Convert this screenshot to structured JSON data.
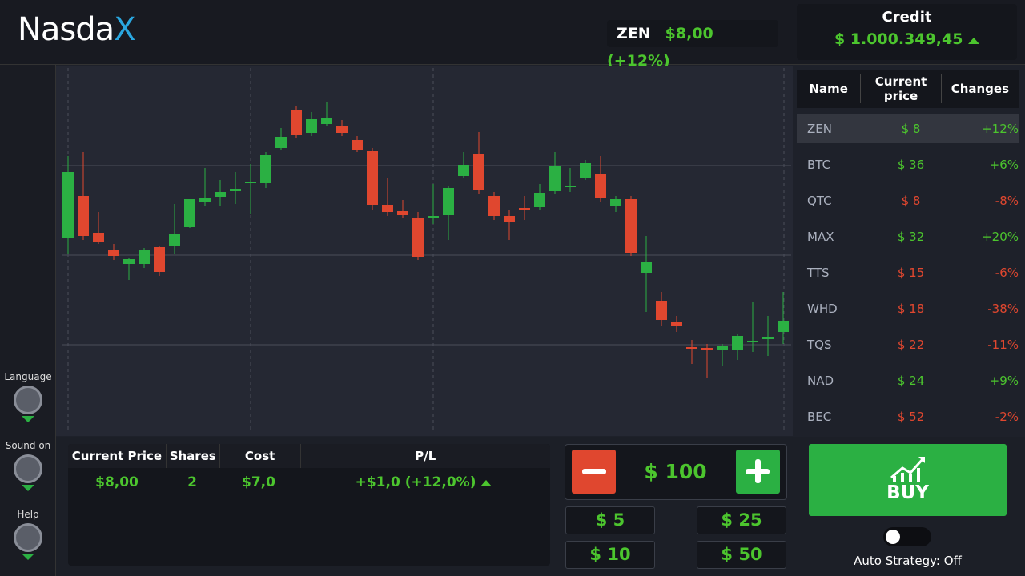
{
  "header": {
    "logo": {
      "text": "Nasda",
      "accent": "X"
    },
    "ticker": {
      "symbol": "ZEN",
      "quote": "$8,00 (+12%)"
    },
    "credit": {
      "label": "Credit",
      "amount": "$ 1.000.349,45"
    }
  },
  "sidebar": {
    "language": "Language",
    "sound": "Sound on",
    "help": "Help"
  },
  "chart_data": {
    "type": "candlestick",
    "ylim": [
      0,
      455
    ],
    "up_color": "#2bb043",
    "down_color": "#e0472f",
    "open": [
      242,
      295,
      249,
      228,
      210,
      210,
      231,
      233,
      256,
      288,
      294,
      301,
      311,
      311,
      355,
      402,
      374,
      385,
      383,
      365,
      351,
      284,
      276,
      267,
      268,
      271,
      320,
      348,
      295,
      270,
      280,
      281,
      301,
      306,
      317,
      322,
      283,
      291,
      199,
      164,
      138,
      106,
      105,
      102,
      102,
      112,
      116,
      125
    ],
    "high": [
      345,
      350,
      275,
      235,
      218,
      230,
      232,
      285,
      291,
      330,
      315,
      325,
      335,
      350,
      380,
      408,
      400,
      412,
      390,
      370,
      355,
      318,
      290,
      275,
      310,
      308,
      350,
      375,
      300,
      278,
      295,
      310,
      350,
      330,
      340,
      345,
      295,
      295,
      245,
      175,
      145,
      115,
      110,
      110,
      122,
      162,
      145,
      175
    ],
    "low": [
      222,
      240,
      235,
      215,
      190,
      205,
      195,
      222,
      255,
      282,
      282,
      285,
      272,
      305,
      352,
      368,
      370,
      382,
      370,
      350,
      278,
      270,
      268,
      215,
      260,
      240,
      318,
      298,
      265,
      240,
      265,
      278,
      298,
      300,
      315,
      288,
      275,
      220,
      150,
      132,
      125,
      85,
      68,
      82,
      90,
      100,
      95,
      110
    ],
    "close": [
      325,
      245,
      237,
      220,
      216,
      228,
      200,
      247,
      291,
      292,
      300,
      304,
      313,
      346,
      369,
      371,
      391,
      392,
      374,
      353,
      284,
      275,
      271,
      219,
      270,
      305,
      334,
      302,
      270,
      262,
      277,
      299,
      333,
      308,
      336,
      292,
      291,
      224,
      213,
      140,
      132,
      104,
      103,
      108,
      120,
      114,
      119,
      139
    ]
  },
  "market": {
    "headers": [
      "Name",
      "Current price",
      "Changes"
    ],
    "selected_row": 0,
    "rows": [
      {
        "cells": [
          "ZEN",
          "$ 8",
          "+12%"
        ],
        "color": "#4cc52e"
      },
      {
        "cells": [
          "BTC",
          "$ 36",
          "+6%"
        ],
        "color": "#4cc52e"
      },
      {
        "cells": [
          "QTC",
          "$ 8",
          "-8%"
        ],
        "color": "#e0472f"
      },
      {
        "cells": [
          "MAX",
          "$ 32",
          "+20%"
        ],
        "color": "#4cc52e"
      },
      {
        "cells": [
          "TTS",
          "$ 15",
          "-6%"
        ],
        "color": "#e0472f"
      },
      {
        "cells": [
          "WHD",
          "$ 18",
          "-38%"
        ],
        "color": "#e0472f"
      },
      {
        "cells": [
          "TQS",
          "$ 22",
          "-11%"
        ],
        "color": "#e0472f"
      },
      {
        "cells": [
          "NAD",
          "$ 24",
          "+9%"
        ],
        "color": "#4cc52e"
      },
      {
        "cells": [
          "BEC",
          "$ 52",
          "-2%"
        ],
        "color": "#e0472f"
      }
    ]
  },
  "position": {
    "headers": [
      "Current Price",
      "Shares",
      "Cost",
      "P/L"
    ],
    "row": [
      "$8,00",
      "2",
      "$7,0",
      "+$1,0 (+12,0%)"
    ]
  },
  "stake": {
    "amount": "$ 100",
    "presets": [
      "$ 5",
      "$ 25",
      "$ 10",
      "$ 50"
    ]
  },
  "buy": {
    "label": "BUY",
    "auto_strategy": "Auto Strategy: Off"
  }
}
